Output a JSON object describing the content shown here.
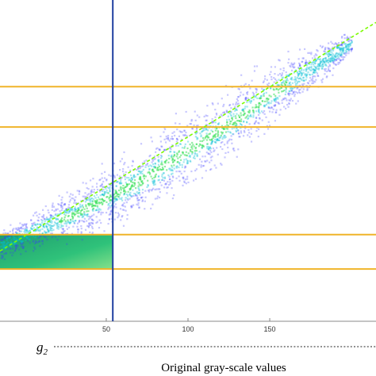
{
  "chart_data": {
    "type": "scatter",
    "subtype": "density-heatmap",
    "xlabel": "Original gray-scale values",
    "ylabel": "",
    "xlim": [
      -15,
      215
    ],
    "ylim": [
      0,
      215
    ],
    "xticks": [
      50,
      100,
      150
    ],
    "xtick_labels": [
      "50",
      "100",
      "150"
    ],
    "grid": false,
    "fit_line": {
      "x": [
        -15,
        215
      ],
      "y": [
        47,
        200
      ],
      "color": "#7CFC00",
      "style": "dashed"
    },
    "density_curve": {
      "x": [
        -15,
        10,
        30,
        55,
        75,
        100,
        125,
        150,
        170,
        190,
        200
      ],
      "y": [
        51,
        63,
        72,
        86,
        97,
        115,
        132,
        152,
        166,
        180,
        186
      ],
      "spread": [
        4,
        6,
        7,
        9,
        10,
        11,
        10,
        9,
        7,
        5,
        3
      ]
    },
    "vertical_line": {
      "x": 54,
      "label": "g",
      "subscript": "2",
      "color": "#1f3fa0"
    },
    "horizontal_lines": {
      "y": [
        35,
        58,
        130,
        157
      ],
      "color": "#f0b429"
    },
    "highlight_region": {
      "x": [
        -15,
        54
      ],
      "y": [
        35,
        58
      ],
      "label": "2",
      "color": "#2aa876"
    },
    "colors": {
      "low_density": "#3b3bff",
      "mid_density": "#00bcd4",
      "high_density": "#39e05a",
      "axis": "#888888"
    }
  }
}
